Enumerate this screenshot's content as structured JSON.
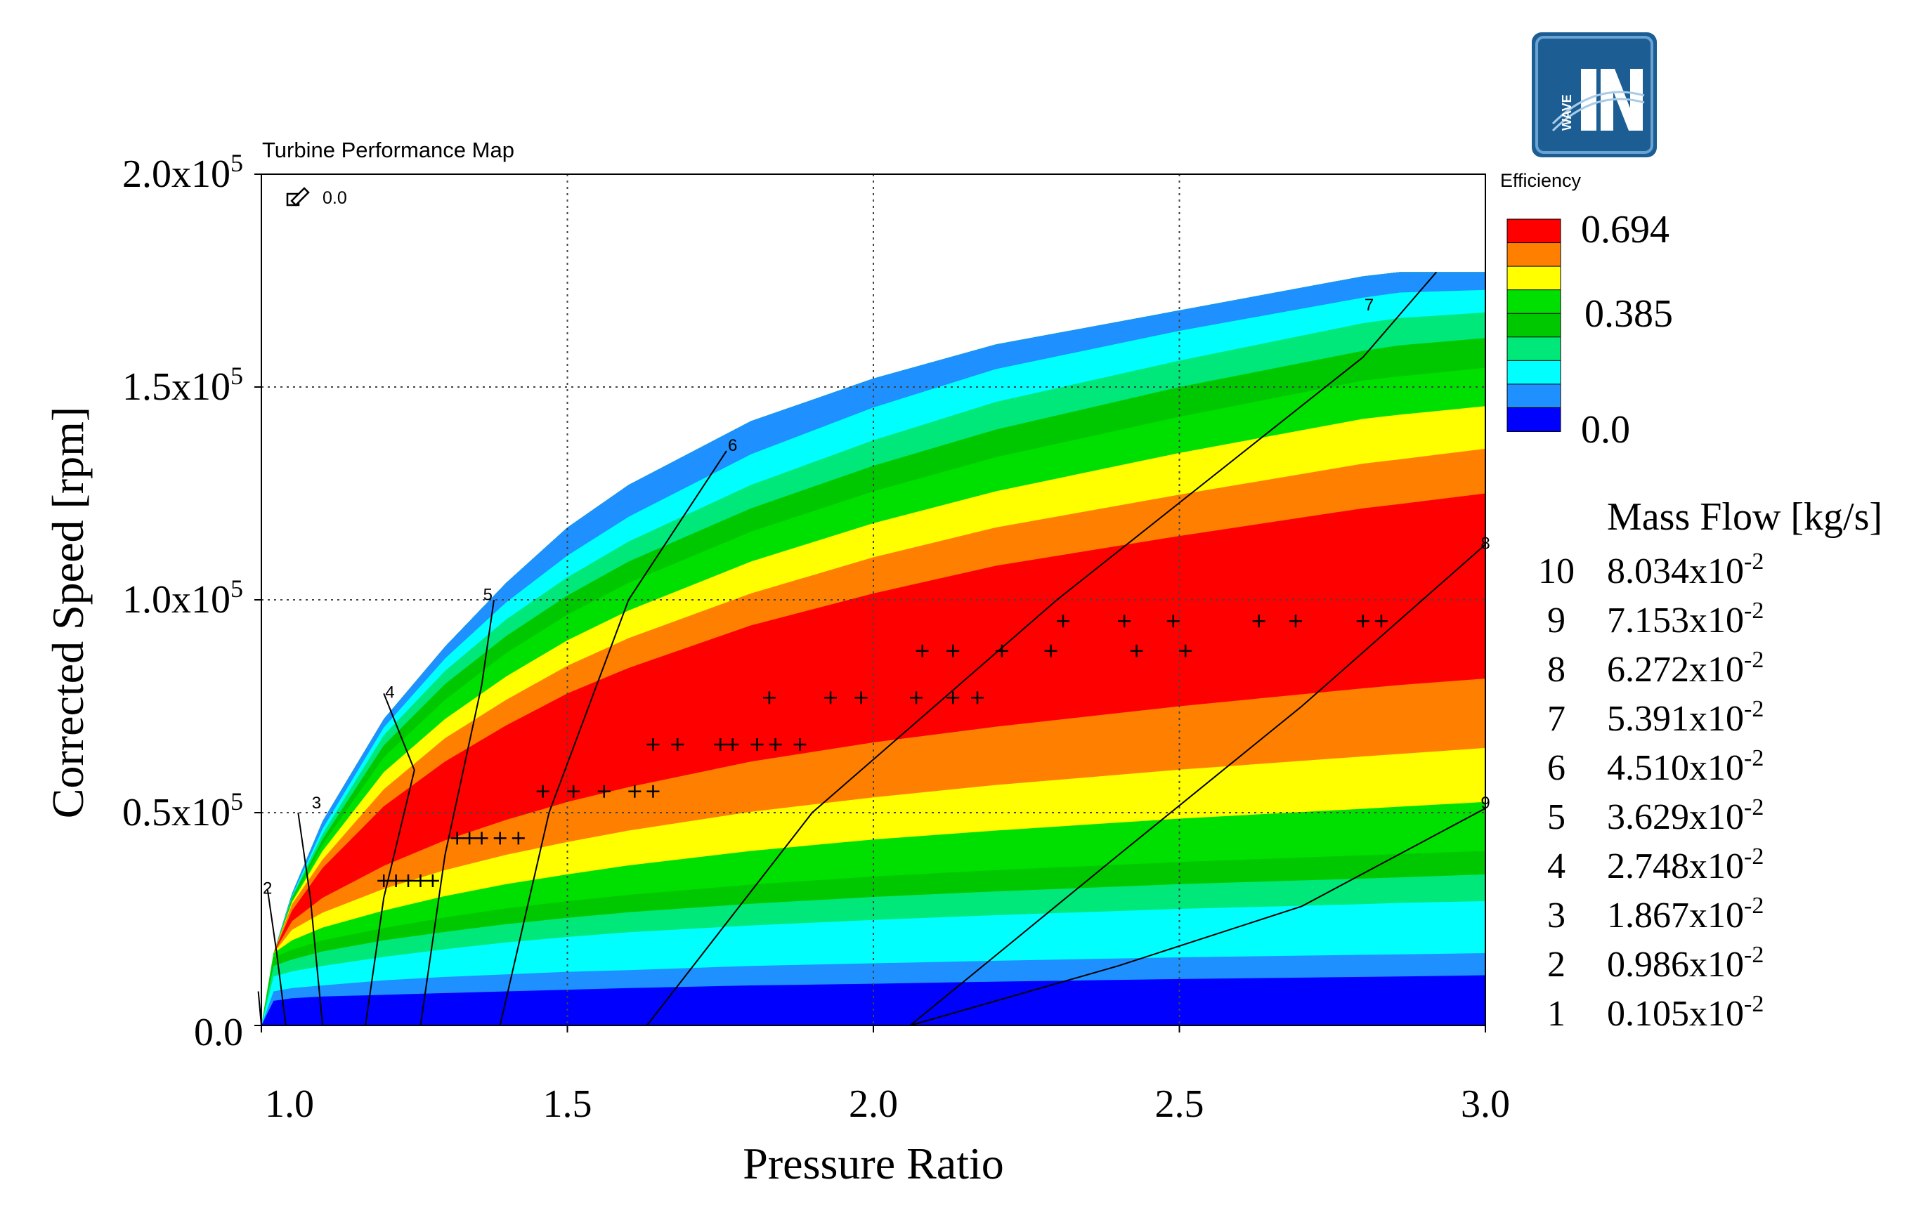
{
  "chart_data": {
    "type": "heatmap",
    "title": "Turbine Performance Map",
    "xlabel": "Pressure Ratio",
    "ylabel": "Corrected Speed [rpm]",
    "xlim": [
      1.0,
      3.0
    ],
    "ylim": [
      0,
      200000
    ],
    "x_ticks": [
      1.0,
      1.5,
      2.0,
      2.5,
      3.0
    ],
    "x_tick_labels": [
      "1.0",
      "1.5",
      "2.0",
      "2.5",
      "3.0"
    ],
    "y_ticks": [
      0,
      50000,
      100000,
      150000,
      200000
    ],
    "y_tick_labels": [
      {
        "mantissa": "0.0",
        "exponent": ""
      },
      {
        "mantissa": "0.5x10",
        "exponent": "5"
      },
      {
        "mantissa": "1.0x10",
        "exponent": "5"
      },
      {
        "mantissa": "1.5x10",
        "exponent": "5"
      },
      {
        "mantissa": "2.0x10",
        "exponent": "5"
      }
    ],
    "grid": true,
    "zoom_readout": "0.0",
    "efficiency_legend": {
      "title": "Efficiency",
      "labels": [
        "0.694",
        "0.385",
        "0.0"
      ],
      "colors": [
        "#ff0000",
        "#ff8000",
        "#ffff00",
        "#00e000",
        "#00c800",
        "#00e87a",
        "#00ffff",
        "#1e90ff",
        "#0000ff"
      ]
    },
    "mass_flow_legend": {
      "title": "Mass Flow [kg/s]",
      "entries": [
        {
          "id": "10",
          "mantissa": "8.034x10",
          "exponent": "-2"
        },
        {
          "id": "9",
          "mantissa": "7.153x10",
          "exponent": "-2"
        },
        {
          "id": "8",
          "mantissa": "6.272x10",
          "exponent": "-2"
        },
        {
          "id": "7",
          "mantissa": "5.391x10",
          "exponent": "-2"
        },
        {
          "id": "6",
          "mantissa": "4.510x10",
          "exponent": "-2"
        },
        {
          "id": "5",
          "mantissa": "3.629x10",
          "exponent": "-2"
        },
        {
          "id": "4",
          "mantissa": "2.748x10",
          "exponent": "-2"
        },
        {
          "id": "3",
          "mantissa": "1.867x10",
          "exponent": "-2"
        },
        {
          "id": "2",
          "mantissa": "0.986x10",
          "exponent": "-2"
        },
        {
          "id": "1",
          "mantissa": "0.105x10",
          "exponent": "-2"
        }
      ]
    },
    "map_boundary": {
      "x": [
        1.0,
        1.02,
        1.05,
        1.1,
        1.2,
        1.3,
        1.4,
        1.5,
        1.6,
        1.8,
        2.0,
        2.2,
        2.5,
        2.8,
        2.86,
        3.0
      ],
      "y_max": [
        0,
        17000,
        31000,
        48000,
        72000,
        89000,
        104000,
        117000,
        127000,
        142000,
        152000,
        160000,
        168000,
        176000,
        177000,
        177000
      ]
    },
    "efficiency_bands": [
      {
        "level": 0.0,
        "color": "#0000ff",
        "lower": [
          0,
          0,
          0,
          0,
          0,
          0,
          0,
          0,
          0,
          0,
          0,
          0,
          0,
          0,
          0,
          0
        ]
      },
      {
        "level": 0.077,
        "color": "#1e90ff",
        "lower": [
          0,
          5800,
          6400,
          6800,
          7200,
          7600,
          8000,
          8400,
          8800,
          9400,
          9800,
          10300,
          10900,
          11400,
          11500,
          11800
        ]
      },
      {
        "level": 0.154,
        "color": "#00ffff",
        "lower": [
          0,
          8000,
          8800,
          9400,
          10600,
          11400,
          12000,
          12600,
          13000,
          14000,
          14600,
          15200,
          16000,
          16600,
          16700,
          17000
        ]
      },
      {
        "level": 0.231,
        "color": "#00e87a",
        "lower": [
          0,
          11500,
          12700,
          14000,
          16100,
          17900,
          19500,
          20800,
          21900,
          23500,
          24800,
          25900,
          27400,
          28500,
          28800,
          29200
        ]
      },
      {
        "level": 0.308,
        "color": "#00c800",
        "lower": [
          0,
          14000,
          15500,
          17400,
          20000,
          22000,
          23800,
          25300,
          26600,
          28600,
          30200,
          31500,
          33200,
          34500,
          34800,
          35500
        ]
      },
      {
        "level": 0.385,
        "color": "#00e000",
        "lower": [
          0,
          16000,
          17800,
          20000,
          22900,
          25400,
          27500,
          29200,
          30700,
          33100,
          35000,
          36500,
          38400,
          40000,
          40300,
          41000
        ]
      },
      {
        "level": 0.462,
        "color": "#ffff00",
        "lower": [
          0,
          17300,
          20000,
          23000,
          27000,
          30400,
          33200,
          35500,
          37600,
          41000,
          43700,
          45800,
          48600,
          50900,
          51400,
          52500
        ]
      },
      {
        "level": 0.539,
        "color": "#ff8000",
        "lower": [
          0,
          18000,
          22500,
          26500,
          32100,
          36500,
          40100,
          43100,
          45800,
          50200,
          53600,
          56500,
          60100,
          63200,
          63800,
          65200
        ]
      },
      {
        "level": 0.616,
        "color": "#ff0000",
        "lower": [
          0,
          18000,
          24500,
          30000,
          37500,
          43500,
          48300,
          52500,
          56000,
          62000,
          66500,
          70200,
          75000,
          79200,
          80000,
          81500
        ]
      },
      {
        "level": 0.539,
        "color": "#ff8000",
        "lower": [
          0,
          18000,
          27000,
          37000,
          51500,
          62000,
          70500,
          78000,
          84000,
          94000,
          101500,
          108000,
          115000,
          121500,
          122500,
          125000
        ]
      },
      {
        "level": 0.462,
        "color": "#ffff00",
        "lower": [
          0,
          18000,
          28500,
          39000,
          55500,
          67500,
          76500,
          84500,
          91000,
          101500,
          110000,
          117000,
          124700,
          132000,
          133000,
          135500
        ]
      },
      {
        "level": 0.385,
        "color": "#00e000",
        "lower": [
          0,
          18000,
          29000,
          41000,
          59500,
          72000,
          82000,
          90500,
          97500,
          109000,
          118000,
          125500,
          134500,
          142500,
          143500,
          145500
        ]
      },
      {
        "level": 0.308,
        "color": "#00c800",
        "lower": [
          0,
          18000,
          29500,
          42500,
          63000,
          76500,
          87500,
          96500,
          104000,
          116000,
          125500,
          133500,
          143000,
          151500,
          152500,
          154500
        ]
      },
      {
        "level": 0.231,
        "color": "#00e87a",
        "lower": [
          0,
          18000,
          30000,
          43800,
          65800,
          80200,
          91500,
          101000,
          109000,
          121500,
          131500,
          140000,
          150000,
          158500,
          159800,
          161500
        ]
      },
      {
        "level": 0.154,
        "color": "#00ffff",
        "lower": [
          0,
          18000,
          30300,
          45000,
          68200,
          83300,
          95400,
          105300,
          113700,
          127000,
          137500,
          146500,
          156200,
          165000,
          166200,
          167500
        ]
      },
      {
        "level": 0.077,
        "color": "#1e90ff",
        "lower": [
          0,
          18000,
          30500,
          46200,
          70000,
          86200,
          99400,
          110400,
          119500,
          134200,
          145200,
          154200,
          163200,
          171000,
          172200,
          172800
        ]
      }
    ],
    "mass_flow_lines": [
      {
        "id": "1",
        "x": [
          1.0,
          0.995
        ],
        "y": [
          0,
          8000
        ]
      },
      {
        "id": "2",
        "x": [
          1.04,
          1.025,
          1.01
        ],
        "y": [
          0,
          17000,
          32000
        ]
      },
      {
        "id": "3",
        "x": [
          1.1,
          1.08,
          1.06
        ],
        "y": [
          0,
          30000,
          50000
        ]
      },
      {
        "id": "4",
        "x": [
          1.17,
          1.2,
          1.25,
          1.2
        ],
        "y": [
          0,
          30000,
          60000,
          78000
        ]
      },
      {
        "id": "5",
        "x": [
          1.26,
          1.3,
          1.36,
          1.38
        ],
        "y": [
          0,
          40000,
          80000,
          100000
        ]
      },
      {
        "id": "6",
        "x": [
          1.39,
          1.47,
          1.6,
          1.76
        ],
        "y": [
          0,
          50000,
          100000,
          135000
        ]
      },
      {
        "id": "7",
        "x": [
          1.63,
          1.9,
          2.3,
          2.8,
          2.92
        ],
        "y": [
          0,
          50000,
          100000,
          157000,
          177000
        ]
      },
      {
        "id": "8",
        "x": [
          2.06,
          2.4,
          2.7,
          3.0
        ],
        "y": [
          0,
          40000,
          75000,
          113000
        ]
      },
      {
        "id": "9",
        "x": [
          2.06,
          2.4,
          2.7,
          3.0
        ],
        "y": [
          0,
          14000,
          28000,
          51000
        ]
      },
      {
        "id": "10",
        "x": [
          2.7,
          3.0
        ],
        "y": [
          0,
          0
        ]
      }
    ],
    "line_number_labels": [
      {
        "text": "2",
        "x": 1.01,
        "y": 32000
      },
      {
        "text": "3",
        "x": 1.09,
        "y": 52000
      },
      {
        "text": "4",
        "x": 1.21,
        "y": 78000
      },
      {
        "text": "5",
        "x": 1.37,
        "y": 101000
      },
      {
        "text": "6",
        "x": 1.77,
        "y": 136000
      },
      {
        "text": "7",
        "x": 2.81,
        "y": 169000
      },
      {
        "text": "8",
        "x": 3.0,
        "y": 113000
      },
      {
        "text": "9",
        "x": 3.0,
        "y": 52000
      }
    ],
    "measured_points": [
      {
        "x": 1.2,
        "y": 34000
      },
      {
        "x": 1.22,
        "y": 34000
      },
      {
        "x": 1.24,
        "y": 34000
      },
      {
        "x": 1.26,
        "y": 34000
      },
      {
        "x": 1.28,
        "y": 34000
      },
      {
        "x": 1.32,
        "y": 44000
      },
      {
        "x": 1.34,
        "y": 44000
      },
      {
        "x": 1.36,
        "y": 44000
      },
      {
        "x": 1.39,
        "y": 44000
      },
      {
        "x": 1.42,
        "y": 44000
      },
      {
        "x": 1.46,
        "y": 55000
      },
      {
        "x": 1.51,
        "y": 55000
      },
      {
        "x": 1.56,
        "y": 55000
      },
      {
        "x": 1.61,
        "y": 55000
      },
      {
        "x": 1.64,
        "y": 55000
      },
      {
        "x": 1.64,
        "y": 66000
      },
      {
        "x": 1.68,
        "y": 66000
      },
      {
        "x": 1.75,
        "y": 66000
      },
      {
        "x": 1.77,
        "y": 66000
      },
      {
        "x": 1.81,
        "y": 66000
      },
      {
        "x": 1.84,
        "y": 66000
      },
      {
        "x": 1.88,
        "y": 66000
      },
      {
        "x": 1.83,
        "y": 77000
      },
      {
        "x": 1.93,
        "y": 77000
      },
      {
        "x": 1.98,
        "y": 77000
      },
      {
        "x": 2.07,
        "y": 77000
      },
      {
        "x": 2.13,
        "y": 77000
      },
      {
        "x": 2.17,
        "y": 77000
      },
      {
        "x": 2.08,
        "y": 88000
      },
      {
        "x": 2.13,
        "y": 88000
      },
      {
        "x": 2.21,
        "y": 88000
      },
      {
        "x": 2.29,
        "y": 88000
      },
      {
        "x": 2.43,
        "y": 88000
      },
      {
        "x": 2.51,
        "y": 88000
      },
      {
        "x": 2.31,
        "y": 95000
      },
      {
        "x": 2.41,
        "y": 95000
      },
      {
        "x": 2.49,
        "y": 95000
      },
      {
        "x": 2.63,
        "y": 95000
      },
      {
        "x": 2.69,
        "y": 95000
      },
      {
        "x": 2.8,
        "y": 95000
      },
      {
        "x": 2.83,
        "y": 95000
      }
    ],
    "logo_text": "WAVE"
  }
}
